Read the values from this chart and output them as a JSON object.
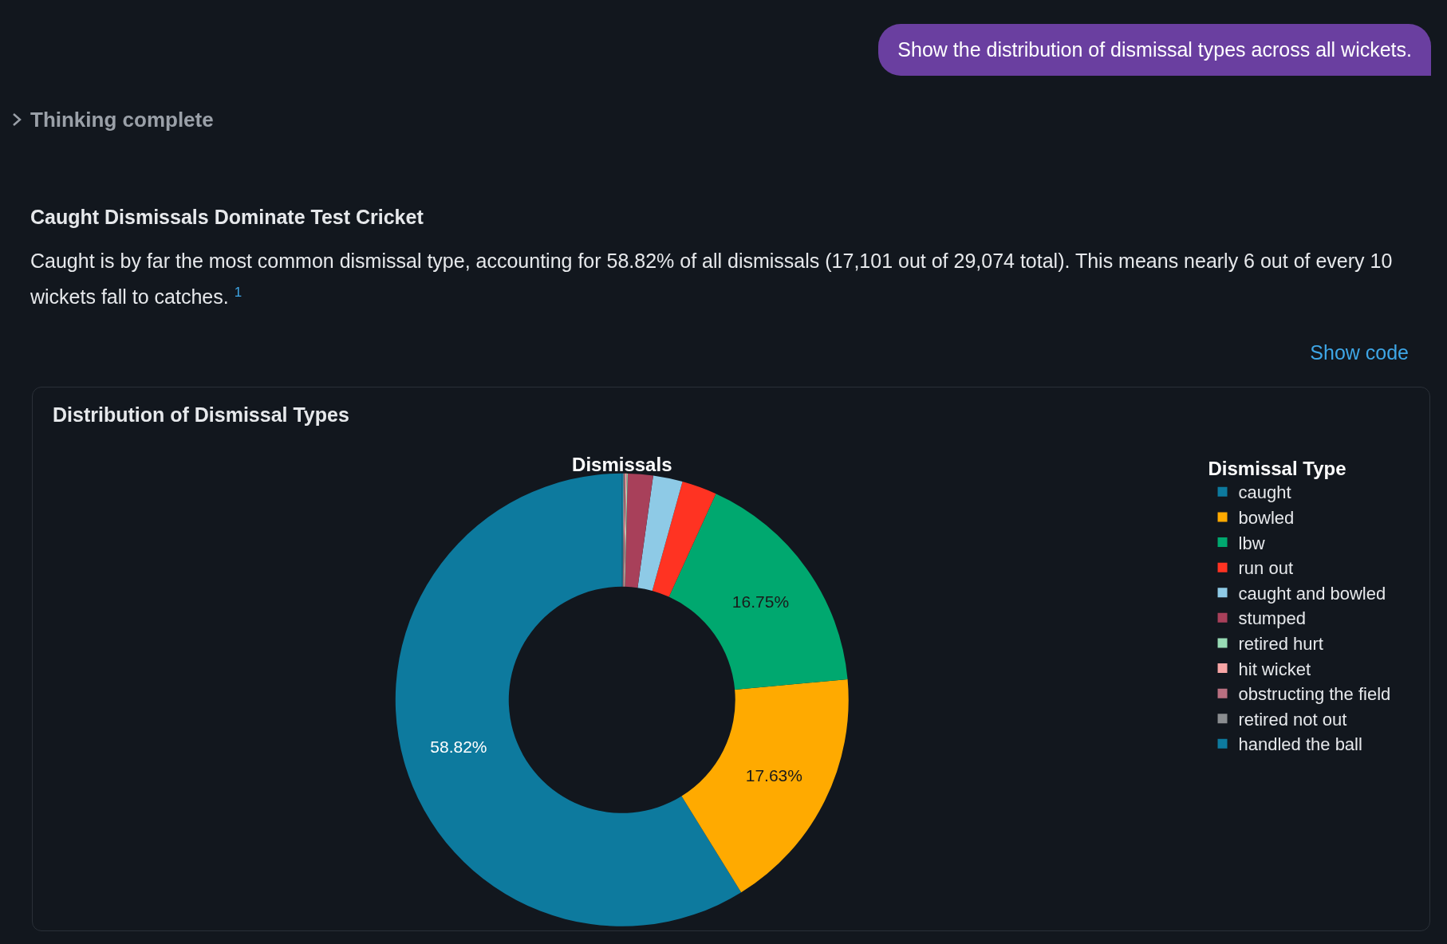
{
  "chart_data": {
    "type": "donut",
    "title": "Distribution of Dismissal Types",
    "subtitle": "Dismissals",
    "legend_title": "Dismissal Type",
    "legend": "right",
    "annotations": [
      "Show the distribution of dismissal types across all wickets.",
      "Thinking complete",
      "Caught Dismissals Dominate Test Cricket",
      "Caught is by far the most common dismissal type, accounting for 58.82% of all dismissals (17,101 out of 29,074 total). This means nearly 6 out of every 10 wickets fall to catches. $^{1}$",
      "Show code"
    ],
    "categories": [
      "caught",
      "bowled",
      "lbw",
      "run out",
      "caught and bowled",
      "stumped",
      "retired hurt",
      "hit wicket",
      "obstructing the field",
      "retired not out",
      "handled the ball"
    ],
    "values": [
      58.82,
      17.63,
      16.75,
      2.5,
      2.1,
      1.8,
      0.08,
      0.08,
      0.08,
      0.08,
      0.08
    ],
    "value_labels": [
      "58.82%",
      "17.63%",
      "16.75%",
      null,
      null,
      null,
      null,
      null,
      null,
      null,
      null
    ],
    "colors": [
      "#0d7a9e",
      "#ffaa00",
      "#00a86f",
      "#ff3322",
      "#8ecae6",
      "#a8405a",
      "#98dbb5",
      "#f7a5a5",
      "#b86f80",
      "#8a8d90",
      "#0d7a9e"
    ]
  }
}
